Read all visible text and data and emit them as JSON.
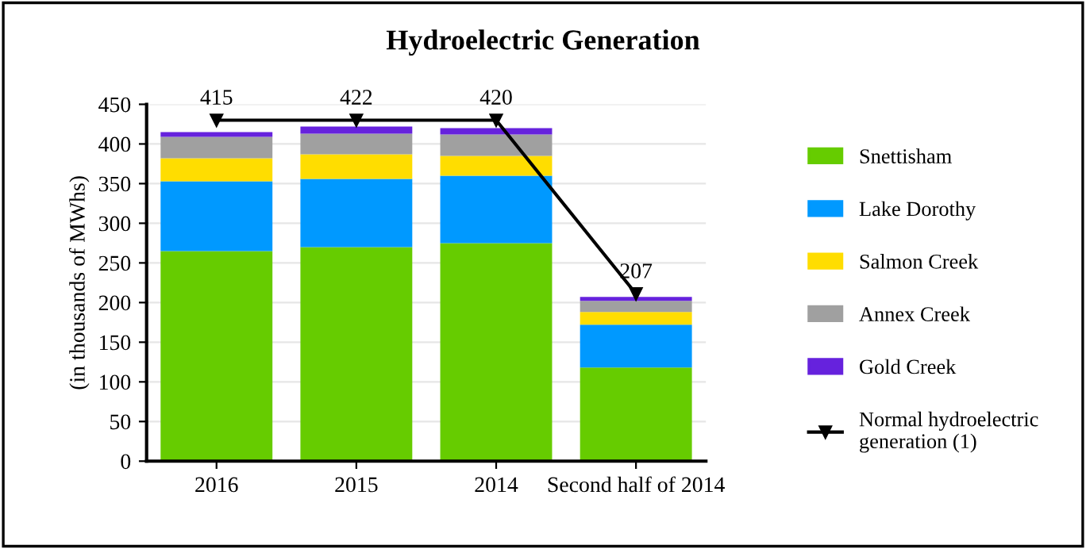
{
  "chart_data": {
    "type": "bar",
    "title": "Hydroelectric Generation",
    "ylabel": "(in thousands of MWhs)",
    "categories": [
      "2016",
      "2015",
      "2014",
      "Second half of 2014"
    ],
    "stacked": true,
    "series": [
      {
        "name": "Snettisham",
        "color": "#66cc00",
        "values": [
          265,
          270,
          275,
          118
        ]
      },
      {
        "name": "Lake Dorothy",
        "color": "#0099ff",
        "values": [
          88,
          86,
          85,
          54
        ]
      },
      {
        "name": "Salmon Creek",
        "color": "#ffdd00",
        "values": [
          29,
          31,
          25,
          16
        ]
      },
      {
        "name": "Annex Creek",
        "color": "#a0a0a0",
        "values": [
          27,
          26,
          27,
          14
        ]
      },
      {
        "name": "Gold Creek",
        "color": "#6622dd",
        "values": [
          6,
          9,
          8,
          5
        ]
      },
      {
        "name": "Normal hydroelectric generation (1)",
        "type": "line",
        "color": "#000000",
        "marker": "triangle",
        "values": [
          430,
          430,
          430,
          211
        ]
      }
    ],
    "totals": [
      "415",
      "422",
      "420",
      "207"
    ],
    "ylim": [
      0,
      450
    ],
    "yticks": [
      0,
      50,
      100,
      150,
      200,
      250,
      300,
      350,
      400,
      450
    ],
    "grid": "y",
    "legend": "right"
  }
}
